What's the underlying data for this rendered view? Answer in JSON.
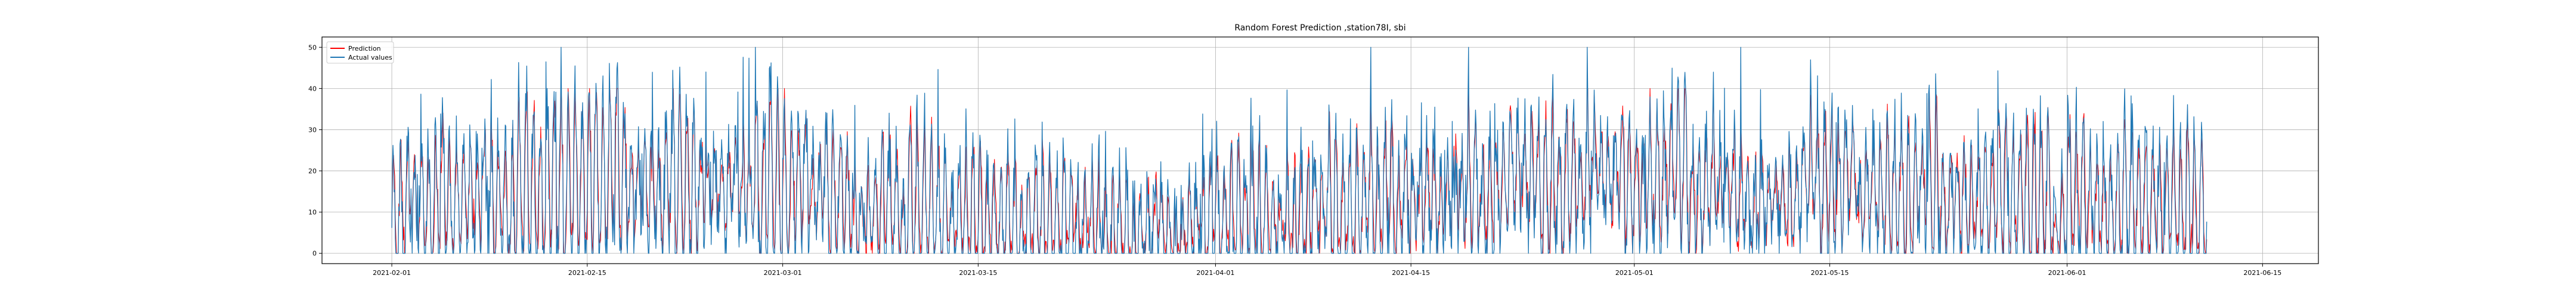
{
  "chart_data": {
    "type": "line",
    "title": "Random Forest Prediction ,station78I, sbi",
    "xlabel": "",
    "ylabel": "",
    "x_range": [
      "2021-01-27",
      "2021-06-19"
    ],
    "xlim": [
      "2021-01-27",
      "2021-06-19"
    ],
    "ylim": [
      -2.5,
      52.5
    ],
    "x_ticks": [
      "2021-02-01",
      "2021-02-15",
      "2021-03-01",
      "2021-03-15",
      "2021-04-01",
      "2021-04-15",
      "2021-05-01",
      "2021-05-15",
      "2021-06-01",
      "2021-06-15"
    ],
    "y_ticks": [
      0,
      10,
      20,
      30,
      40,
      50
    ],
    "grid": true,
    "legend_position": "top-left",
    "legend": [
      "Prediction",
      "Actual values"
    ],
    "data_range": [
      "2021-02-01",
      "2021-06-11"
    ],
    "sampling": "hourly",
    "series": [
      {
        "name": "Prediction",
        "color": "#ff0000",
        "approx_range": [
          0,
          40
        ]
      },
      {
        "name": "Actual values",
        "color": "#1f77b4",
        "approx_range": [
          0,
          50
        ]
      }
    ]
  }
}
